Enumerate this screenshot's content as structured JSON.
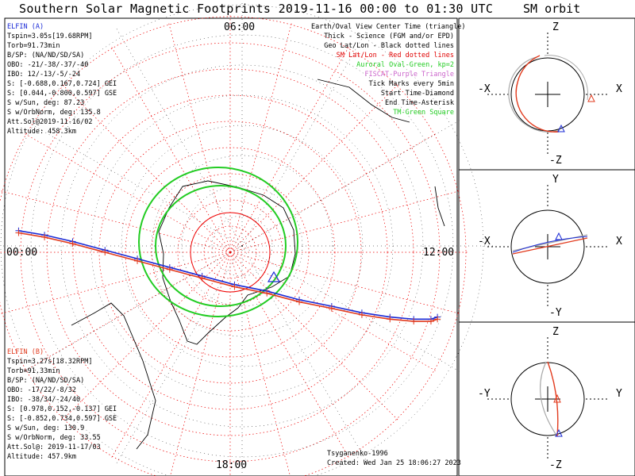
{
  "page": {
    "title": "Southern Solar Magnetic Footprints 2019-11-16 00:00 to 01:30 UTC",
    "side_title": "SM orbit"
  },
  "legend": {
    "lines": [
      {
        "text": "Earth/Oval View Center Time (triangle)",
        "color": "#000000"
      },
      {
        "text": "Thick - Science (FGM and/or EPD)",
        "color": "#000000"
      },
      {
        "text": "Geo Lat/Lon - Black dotted lines",
        "color": "#000000"
      },
      {
        "text": "SM Lat/Lon - Red dotted lines",
        "color": "#e00000"
      },
      {
        "text": "Auroral Oval-Green, kp=2",
        "color": "#22cc22"
      },
      {
        "text": "FISCAT-Purple Triangle",
        "color": "#cc66cc"
      },
      {
        "text": "Tick Marks every 5min",
        "color": "#000000"
      },
      {
        "text": "Start Time-Diamond",
        "color": "#000000"
      },
      {
        "text": "End Time-Asterisk",
        "color": "#000000"
      },
      {
        "text": "TM-Green Square",
        "color": "#22cc22"
      }
    ]
  },
  "elfin_a": {
    "lines": [
      "ELFIN (A)",
      "Tspin=3.05s[19.68RPM]",
      "Torb=91.73min",
      "B/SP: (NA/ND/SD/SA)",
      "OBO: -21/-38/-37/-40",
      "IBO: 12/-13/-5/-24",
      "S: [-0.688,0.167,0.724] GEI",
      "S: [0.044,-0.800,0.597] GSE",
      "S w/Sun, deg: 87.23",
      "S w/OrbNorm, deg: 135.8",
      "Att.Sol@2019-11-16/02",
      "Altitude: 458.3km"
    ],
    "color": "#1a2ad6"
  },
  "elfin_b": {
    "lines": [
      "ELFIN (B)",
      "Tspin=3.27s[18.32RPM]",
      "Torb=91.33min",
      "B/SP: (NA/ND/SD/SA)",
      "OBO: -17/22/-8/32",
      "IBO: -38/34/-24/40",
      "S: [0.978,0.152,-0.137] GEI",
      "S: [-0.852,0.734,0.597] GSE",
      "S w/Sun, deg: 130.9",
      "S w/OrbNorm, deg: 33.55",
      "Att.Sol@: 2019-11-17/03",
      "Altitude: 457.9km"
    ],
    "color": "#e23b1e"
  },
  "footer": {
    "model": "Tsyganenko-1996",
    "created": "Created: Wed Jan 25 18:06:27 2023"
  },
  "chart_data": [
    {
      "type": "polar-map",
      "title": "Southern Solar Magnetic Footprints 2019-11-16 00:00 to 01:30 UTC",
      "hemisphere": "south",
      "mlt_labels": {
        "top": "06:00",
        "left": "00:00",
        "right": "12:00",
        "bottom": "18:00"
      },
      "geo_grid": "black dotted",
      "sm_grid": "red dotted",
      "auroral_oval": {
        "color": "#22cc22",
        "kp": 2
      },
      "series": [
        {
          "name": "ELFIN (A)",
          "color": "#1a2ad6",
          "x": [
            -0.98,
            -0.86,
            -0.73,
            -0.58,
            -0.43,
            -0.28,
            -0.13,
            0.02,
            0.17,
            0.32,
            0.47,
            0.61,
            0.74,
            0.85,
            0.93,
            0.96
          ],
          "y": [
            0.1,
            0.08,
            0.05,
            0.01,
            -0.03,
            -0.07,
            -0.11,
            -0.15,
            -0.18,
            -0.22,
            -0.25,
            -0.28,
            -0.3,
            -0.31,
            -0.31,
            -0.3
          ]
        },
        {
          "name": "ELFIN (B)",
          "color": "#e23b1e",
          "x": [
            -0.98,
            -0.86,
            -0.73,
            -0.58,
            -0.43,
            -0.28,
            -0.13,
            0.02,
            0.17,
            0.32,
            0.47,
            0.61,
            0.74,
            0.85,
            0.93,
            0.96
          ],
          "y": [
            0.09,
            0.07,
            0.04,
            0.0,
            -0.04,
            -0.08,
            -0.12,
            -0.16,
            -0.19,
            -0.23,
            -0.26,
            -0.29,
            -0.31,
            -0.32,
            -0.32,
            -0.31
          ]
        }
      ]
    },
    {
      "type": "scatter",
      "title": "SM orbit",
      "panel": "X-Z",
      "axis_labels": {
        "top": "Z",
        "bottom": "-Z",
        "left": "-X",
        "right": "X"
      },
      "series": [
        {
          "name": "ELFIN (A)",
          "color": "#1a2ad6",
          "angle_start_deg": 75,
          "angle_end_deg": 285
        },
        {
          "name": "ELFIN (B)",
          "color": "#e23b1e",
          "angle_start_deg": 82,
          "angle_end_deg": 340
        }
      ]
    },
    {
      "type": "scatter",
      "title": "SM orbit",
      "panel": "X-Y",
      "axis_labels": {
        "top": "Y",
        "bottom": "-Y",
        "left": "-X",
        "right": "X"
      },
      "series": [
        {
          "name": "ELFIN (A)",
          "color": "#1a2ad6"
        },
        {
          "name": "ELFIN (B)",
          "color": "#e23b1e"
        }
      ]
    },
    {
      "type": "scatter",
      "title": "SM orbit",
      "panel": "Y-Z",
      "axis_labels": {
        "top": "Z",
        "bottom": "-Z",
        "left": "-Y",
        "right": "Y"
      },
      "series": [
        {
          "name": "ELFIN (A)",
          "color": "#1a2ad6"
        },
        {
          "name": "ELFIN (B)",
          "color": "#e23b1e"
        }
      ]
    }
  ]
}
